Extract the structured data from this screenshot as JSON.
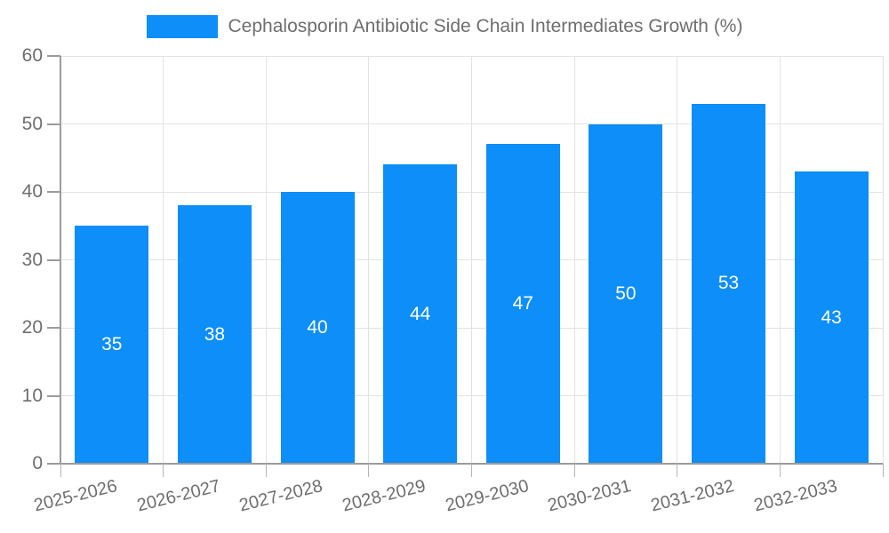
{
  "chart_data": {
    "type": "bar",
    "title": "Cephalosporin Antibiotic Side Chain Intermediates Growth (%)",
    "categories": [
      "2025-2026",
      "2026-2027",
      "2027-2028",
      "2028-2029",
      "2029-2030",
      "2030-2031",
      "2031-2032",
      "2032-2033"
    ],
    "values": [
      35,
      38,
      40,
      44,
      47,
      50,
      53,
      43
    ],
    "xlabel": "",
    "ylabel": "",
    "ylim": [
      0,
      60
    ],
    "yticks": [
      0,
      10,
      20,
      30,
      40,
      50,
      60
    ],
    "grid": true,
    "legend_position": "top",
    "bar_color": "#0d8ef8",
    "value_label_color": "#ffffff",
    "axis_text_color": "#6e6e6e",
    "axis_line_color": "#9b9b9b",
    "grid_color": "#e2e2e2",
    "background_color": "#ffffff"
  }
}
